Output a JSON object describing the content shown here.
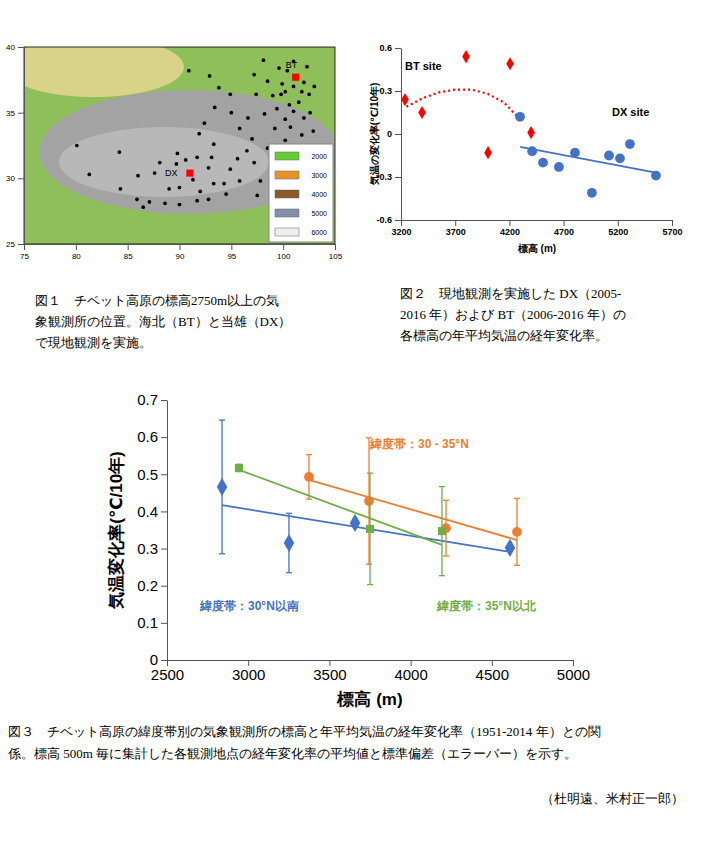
{
  "chart_data": [
    {
      "type": "scatter",
      "title": [
        "図１　チベット高原の標高2750m以上の気",
        "象観測所の位置。海北（BT）と当雄（DX）",
        "で現地観測を実施。"
      ],
      "xlim": [
        75,
        105
      ],
      "xticks": [
        75,
        80,
        85,
        90,
        95,
        100,
        105
      ],
      "ylim": [
        25,
        40
      ],
      "yticks": [
        25,
        30,
        35,
        40
      ],
      "colorbar": {
        "values": [
          2000,
          3000,
          4000,
          5000,
          6000
        ],
        "colors": [
          "#66cc33",
          "#e8922a",
          "#8b5a2b",
          "#8090a8",
          "#eeeeee"
        ]
      },
      "series": [
        {
          "color": "#000000",
          "marker": "circle",
          "x": [
            97.2,
            98.1,
            99.6,
            100.4,
            101.0,
            102.3,
            98.5,
            99.9,
            101.0,
            102.0,
            103.0,
            100.2,
            101.8,
            102.5,
            99.0,
            97.4,
            94.9,
            93.8,
            92.9,
            90.9,
            101.5,
            100.6,
            99.4,
            102.6,
            101.0,
            102.0,
            100.2,
            98.2,
            96.6,
            92.4,
            95.8,
            97.0,
            99.2,
            100.7,
            101.8,
            102.9,
            100.2,
            98.5,
            99.0,
            100.0,
            101.1,
            102.2,
            97.2,
            93.3,
            91.9,
            89.8,
            88.1,
            89.7,
            90.6,
            91.7,
            93.1,
            95.6,
            96.5,
            94.9,
            92.8,
            91.3,
            90.0,
            89.0,
            92.0,
            93.3,
            94.3,
            95.8,
            97.8,
            98.9,
            101.0,
            99.3,
            100.3,
            98.8,
            94.5,
            92.8,
            91.7,
            90.0,
            88.6,
            87.1,
            85.9,
            86.5,
            84.3,
            81.3,
            80.1,
            84.2,
            86.0,
            87.6,
            97.5,
            95.0,
            93.4,
            99.8
          ],
          "values": [
            37.9,
            39.0,
            38.4,
            38.2,
            38.9,
            38.5,
            37.4,
            37.2,
            37.0,
            37.3,
            37.0,
            36.6,
            36.6,
            36.4,
            36.3,
            36.4,
            36.4,
            36.9,
            37.8,
            38.2,
            35.8,
            35.6,
            35.3,
            35.0,
            35.1,
            34.6,
            34.5,
            34.9,
            34.6,
            34.2,
            33.8,
            33.0,
            33.8,
            33.9,
            33.3,
            33.6,
            32.9,
            32.3,
            31.8,
            31.3,
            30.8,
            31.6,
            31.2,
            32.6,
            33.4,
            31.9,
            31.2,
            31.1,
            31.4,
            31.6,
            31.6,
            31.5,
            32.1,
            30.7,
            30.8,
            29.9,
            29.3,
            29.2,
            29.0,
            29.6,
            29.6,
            29.8,
            29.8,
            30.0,
            29.7,
            28.9,
            28.4,
            28.2,
            28.8,
            28.4,
            28.3,
            28.0,
            28.1,
            28.2,
            28.4,
            27.8,
            29.2,
            30.3,
            32.5,
            32.0,
            30.2,
            30.4,
            28.7,
            35.0,
            35.4,
            36.4
          ]
        },
        {
          "color": "#ff0000",
          "marker": "square",
          "x": [
            101.2,
            91.0
          ],
          "values": [
            37.7,
            30.4
          ]
        }
      ],
      "annotations": [
        {
          "text": "BT",
          "x": 100.8,
          "y": 38.4
        },
        {
          "text": "DX",
          "x": 89.2,
          "y": 30.2
        }
      ]
    },
    {
      "type": "scatter",
      "title": [
        "図２　現地観測を実施した DX（2005-",
        "2016 年）および BT（2006-2016 年）の",
        "各標高の年平均気温の経年変化率。"
      ],
      "x_label": "標高 (m)",
      "y_label": "気温の変化率(℃/10年)",
      "xlim": [
        3200,
        5700
      ],
      "xticks": [
        3200,
        3700,
        4200,
        4700,
        5200,
        5700
      ],
      "ylim": [
        -0.6,
        0.6
      ],
      "yticks": [
        -0.6,
        -0.3,
        0,
        0.3,
        0.6
      ],
      "series": [
        {
          "name": "BT site",
          "color": "#ff0000",
          "marker": "diamond",
          "x": [
            3237,
            3394,
            3800,
            4003,
            4206,
            4400
          ],
          "values": [
            0.24,
            0.15,
            0.54,
            -0.13,
            0.49,
            0.01
          ]
        },
        {
          "type": "line",
          "line_style": "dotted",
          "color": "#ff0000",
          "x": [
            3250,
            3400,
            3550,
            3700,
            3850,
            4000,
            4150,
            4300
          ],
          "values": [
            0.19,
            0.25,
            0.29,
            0.31,
            0.31,
            0.28,
            0.22,
            0.1
          ]
        },
        {
          "name": "DX site",
          "color": "#4472c4",
          "marker": "circle",
          "x": [
            4298,
            4410,
            4510,
            4657,
            4805,
            4961,
            5119,
            5220,
            5312,
            5552
          ],
          "values": [
            0.12,
            -0.12,
            -0.2,
            -0.23,
            -0.13,
            -0.41,
            -0.15,
            -0.17,
            -0.07,
            -0.29
          ]
        },
        {
          "type": "line",
          "line_style": "solid",
          "color": "#4472c4",
          "x": [
            4300,
            5550
          ],
          "values": [
            -0.09,
            -0.27
          ]
        }
      ]
    },
    {
      "type": "scatter",
      "title": [
        "図３　チベット高原の緯度帯別の気象観測所の標高と年平均気温の経年変化率（1951-2014 年）との関",
        "係。標高 500m 毎に集計した各観測地点の経年変化率の平均値と標準偏差（エラーバー）を示す。"
      ],
      "x_label": "標高 (m)",
      "y_label": "気温変化率(℃/10年)",
      "xlim": [
        2500,
        5000
      ],
      "xticks": [
        2500,
        3000,
        3500,
        4000,
        4500,
        5000
      ],
      "ylim": [
        0,
        0.7
      ],
      "yticks": [
        0,
        0.1,
        0.2,
        0.3,
        0.4,
        0.5,
        0.6,
        0.7
      ],
      "series": [
        {
          "name": "緯度帯：30°N以南",
          "color": "#4472c4",
          "marker": "diamond",
          "x": [
            2839,
            3251,
            3658,
            4612
          ],
          "values": [
            0.466,
            0.315,
            0.369,
            0.302
          ],
          "errors": [
            0.18,
            0.08,
            0.01,
            0.005
          ]
        },
        {
          "type": "line",
          "line_style": "solid",
          "color": "#4472c4",
          "x": [
            2839,
            4612
          ],
          "values": [
            0.417,
            0.291
          ]
        },
        {
          "name": "緯度帯：30 - 35°N",
          "color": "#ed7d31",
          "marker": "circle",
          "x": [
            3374,
            3744,
            4218,
            4655
          ],
          "values": [
            0.493,
            0.428,
            0.355,
            0.345
          ],
          "errors": [
            0.06,
            0.17,
            0.075,
            0.09
          ]
        },
        {
          "type": "line",
          "line_style": "solid",
          "color": "#ed7d31",
          "x": [
            3374,
            4655
          ],
          "values": [
            0.485,
            0.323
          ]
        },
        {
          "name": "緯度帯：35°N以北",
          "color": "#70ad47",
          "marker": "square",
          "x": [
            2943,
            3750,
            4193
          ],
          "values": [
            0.517,
            0.353,
            0.347
          ],
          "errors": [
            0.01,
            0.15,
            0.12
          ]
        },
        {
          "type": "line",
          "line_style": "solid",
          "color": "#70ad47",
          "x": [
            2943,
            4193
          ],
          "values": [
            0.512,
            0.31
          ]
        }
      ]
    }
  ],
  "author": "（杜明遠、米村正一郎）"
}
